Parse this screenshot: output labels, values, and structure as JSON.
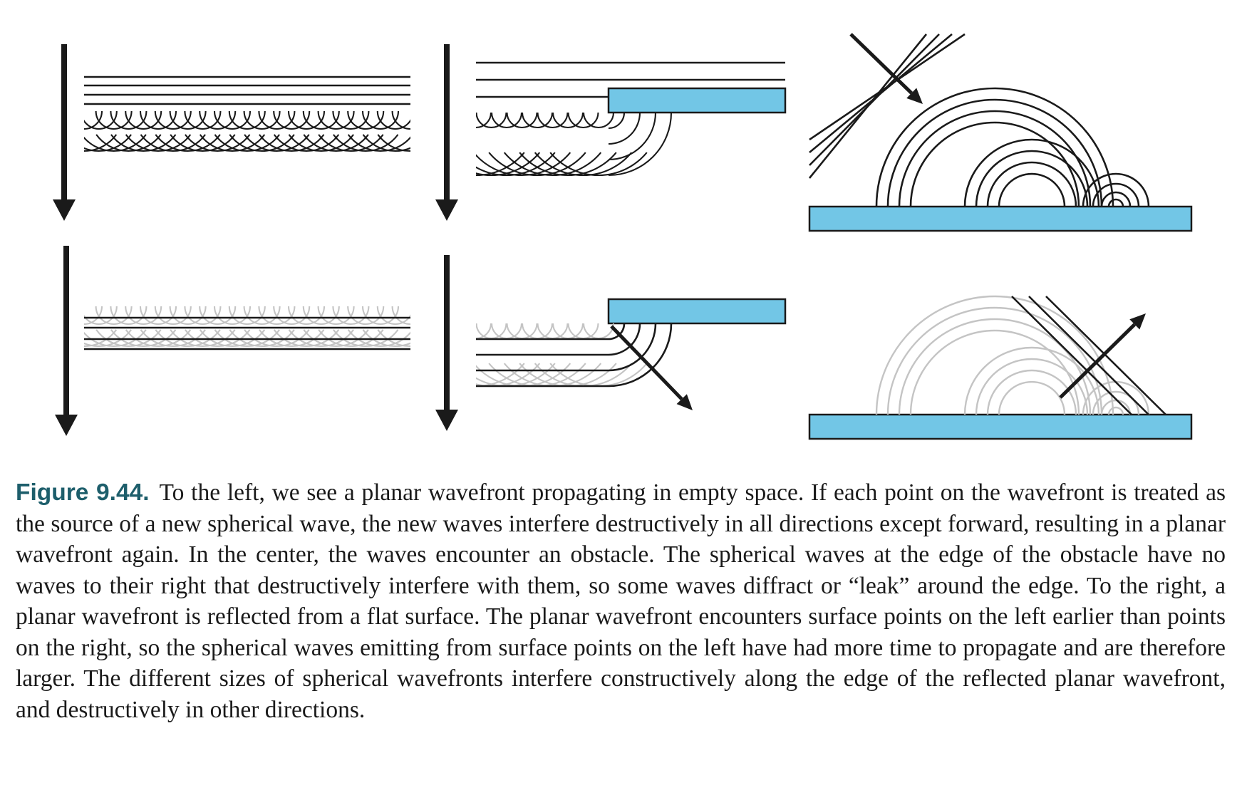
{
  "figure": {
    "label": "Figure 9.44.",
    "caption": "To the left, we see a planar wavefront propagating in empty space. If each point on the wavefront is treated as the source of a new spherical wave, the new waves interfere destructively in all directions except forward, resulting in a planar wavefront again. In the center, the waves encounter an obstacle. The spherical waves at the edge of the obstacle have no waves to their right that destructively interfere with them, so some waves diffract or “leak” around the edge. To the right, a planar wavefront is reflected from a flat surface. The planar wavefront encounters surface points on the left earlier than points on the right, so the spherical waves emitting from surface points on the left have had more time to propagate and are therefore larger. The different sizes of spherical wavefronts interfere constructively along the edge of the reflected planar wavefront, and destructively in other directions."
  },
  "colors": {
    "surface": "#72c6e6",
    "line": "#1a1a1a",
    "faded": "#c4c4c4",
    "label": "#1d5e6b"
  },
  "panels": [
    {
      "id": "free-space-before",
      "row": "top",
      "column": "left"
    },
    {
      "id": "obstacle-before",
      "row": "top",
      "column": "center"
    },
    {
      "id": "reflection-before",
      "row": "top",
      "column": "right"
    },
    {
      "id": "free-space-after",
      "row": "bottom",
      "column": "left"
    },
    {
      "id": "obstacle-after",
      "row": "bottom",
      "column": "center"
    },
    {
      "id": "reflection-after",
      "row": "bottom",
      "column": "right"
    }
  ]
}
